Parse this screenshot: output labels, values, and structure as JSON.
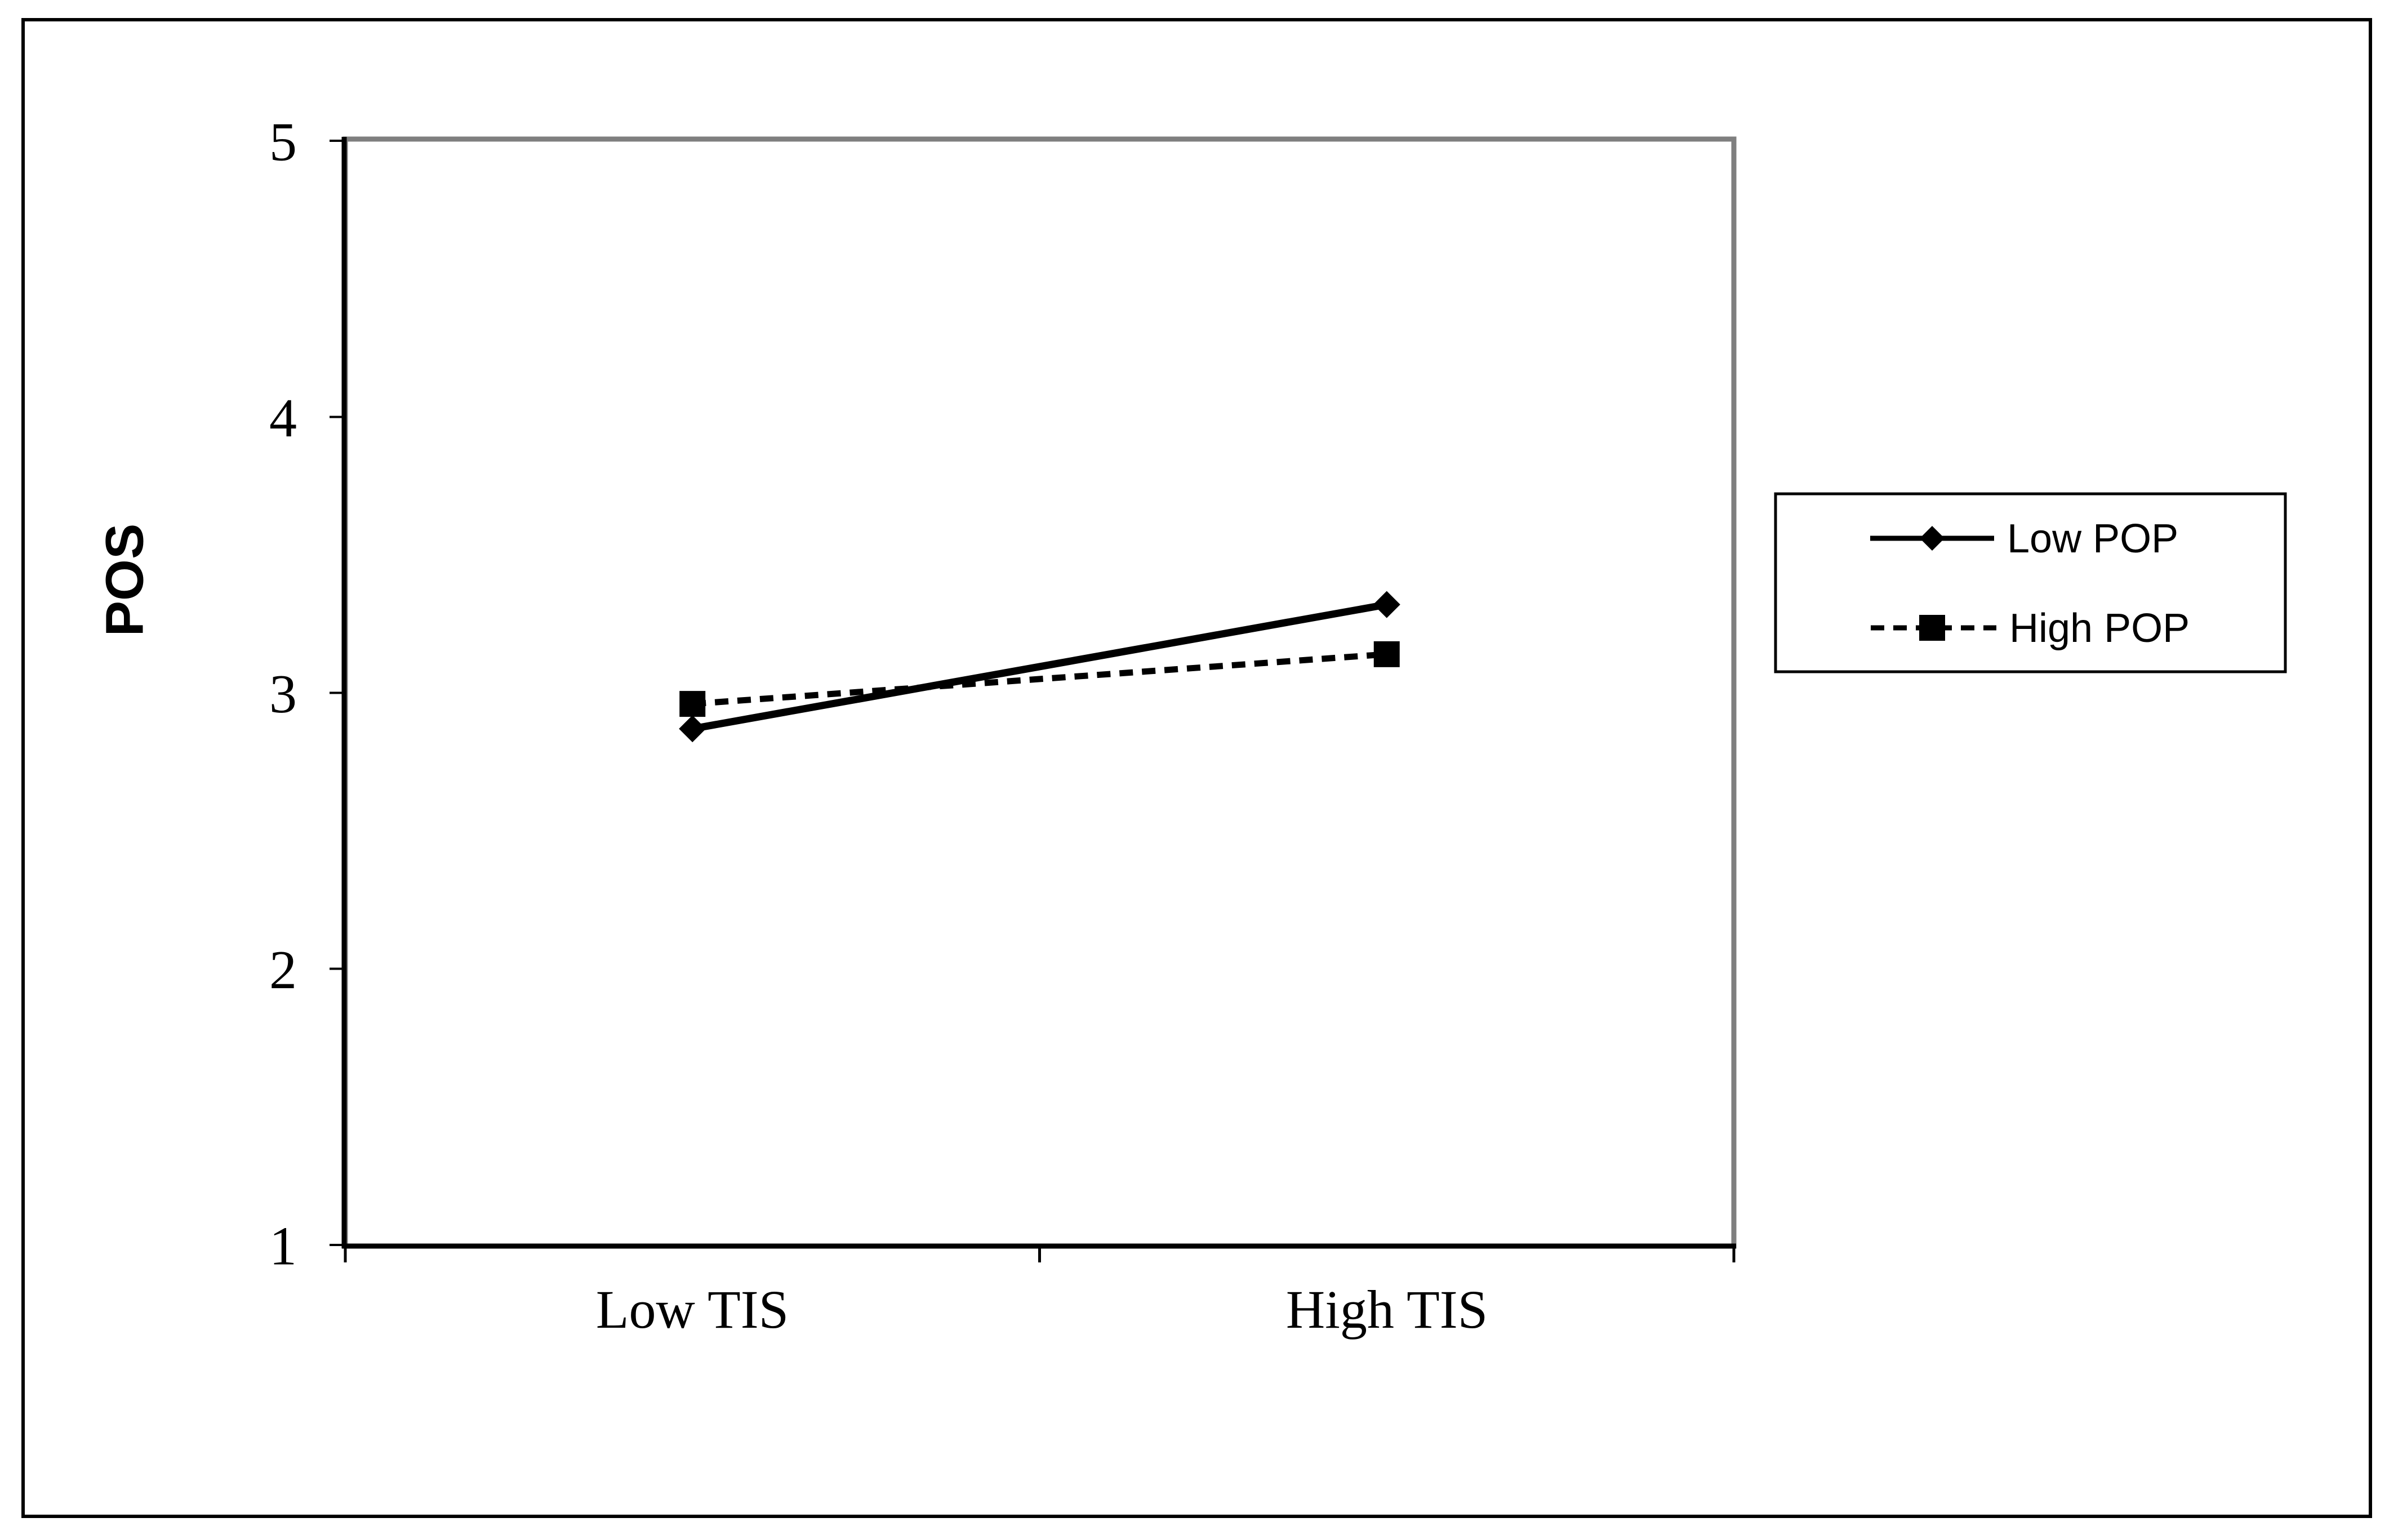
{
  "chart_data": {
    "type": "line",
    "title": "",
    "categories": [
      "Low TIS",
      "High TIS"
    ],
    "series": [
      {
        "name": "Low POP",
        "values": [
          2.87,
          3.32
        ],
        "marker": "diamond",
        "line_style": "solid",
        "color": "#000000"
      },
      {
        "name": "High POP",
        "values": [
          2.96,
          3.14
        ],
        "marker": "square",
        "line_style": "dashed",
        "color": "#000000"
      }
    ],
    "xlabel": "",
    "ylabel": "POS",
    "ylim": [
      1,
      5
    ],
    "yticks": [
      1,
      2,
      3,
      4,
      5
    ],
    "grid": false,
    "legend_position": "right",
    "colors": {
      "series": "#000000",
      "plot_border": "#7f7f7f",
      "axis": "#000000",
      "outer_border": "#000000",
      "background": "#ffffff"
    }
  }
}
